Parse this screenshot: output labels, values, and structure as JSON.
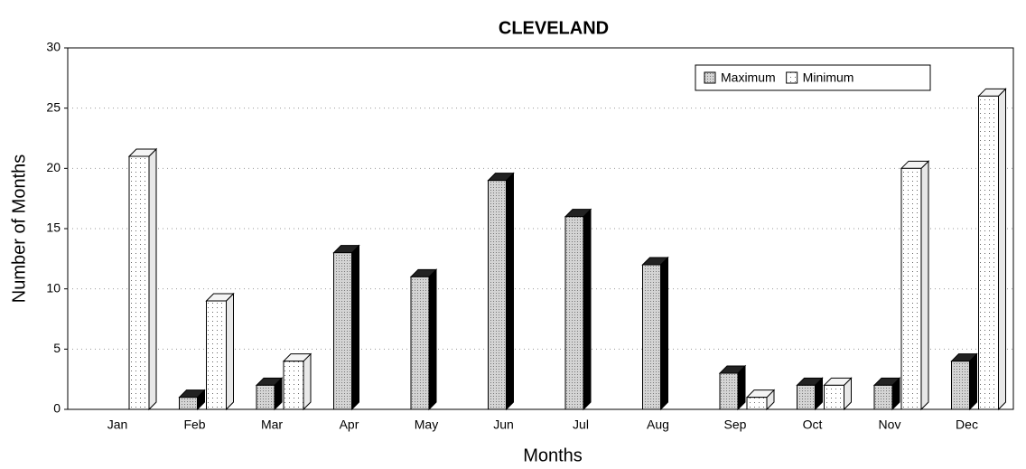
{
  "chart_data": {
    "type": "bar3d",
    "title": "CLEVELAND",
    "x_label": "Months",
    "y_label": "Number of Months",
    "categories": [
      "Jan",
      "Feb",
      "Mar",
      "Apr",
      "May",
      "Jun",
      "Jul",
      "Aug",
      "Sep",
      "Oct",
      "Nov",
      "Dec"
    ],
    "series": [
      {
        "name": "Maximum",
        "color": "#c8c8c8",
        "values": [
          0,
          1,
          2,
          13,
          11,
          19,
          16,
          12,
          3,
          2,
          2,
          4
        ]
      },
      {
        "name": "Minimum",
        "color": "#ffffff",
        "values": [
          21,
          9,
          4,
          0,
          0,
          0,
          0,
          0,
          1,
          2,
          20,
          26
        ]
      }
    ],
    "ylim": [
      0,
      30
    ],
    "yticks": [
      0,
      5,
      10,
      15,
      20,
      25,
      30
    ],
    "grid": true,
    "legend": "top-right"
  }
}
